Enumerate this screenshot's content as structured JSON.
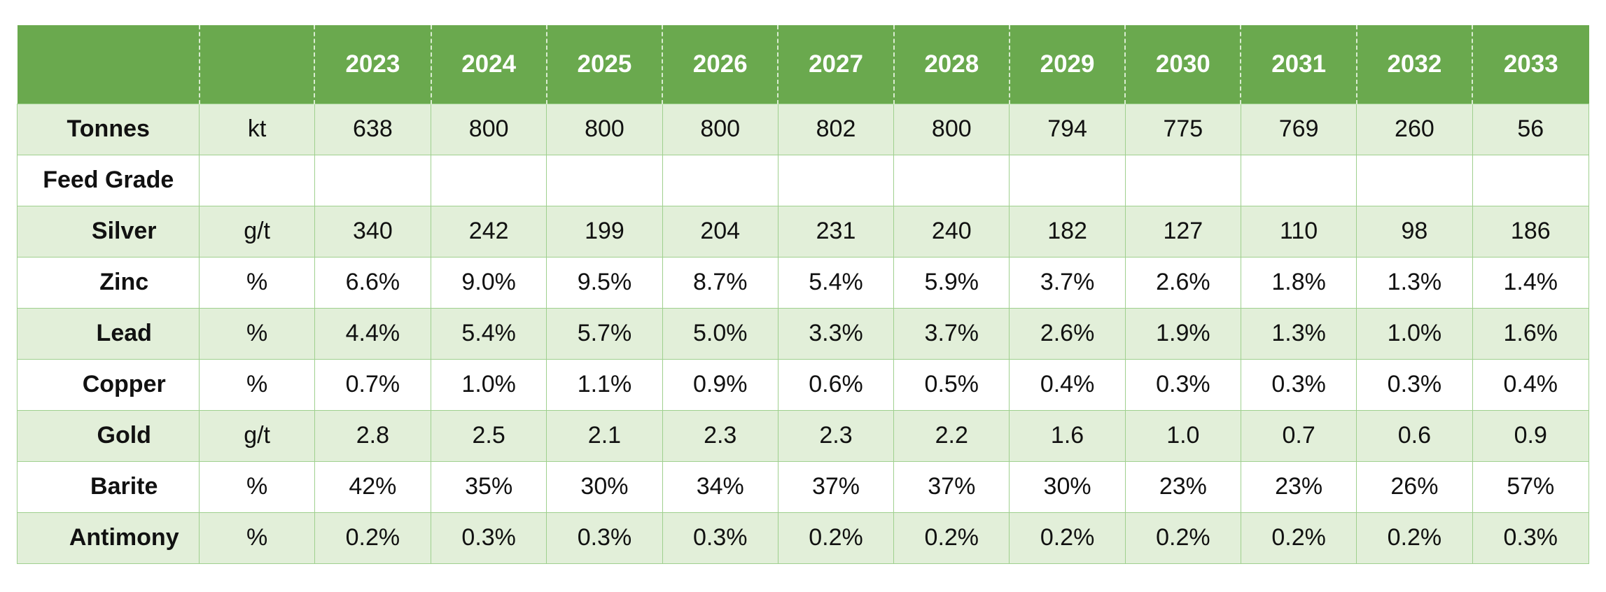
{
  "table": {
    "header": {
      "label_col": "",
      "unit_col": "",
      "years": [
        "2023",
        "2024",
        "2025",
        "2026",
        "2027",
        "2028",
        "2029",
        "2030",
        "2031",
        "2032",
        "2033"
      ]
    },
    "rows": [
      {
        "label": "Tonnes",
        "unit": "kt",
        "indent": false,
        "shaded": true,
        "values": [
          "638",
          "800",
          "800",
          "800",
          "802",
          "800",
          "794",
          "775",
          "769",
          "260",
          "56"
        ]
      },
      {
        "label": "Feed Grade",
        "unit": "",
        "indent": false,
        "shaded": false,
        "values": [
          "",
          "",
          "",
          "",
          "",
          "",
          "",
          "",
          "",
          "",
          ""
        ]
      },
      {
        "label": "Silver",
        "unit": "g/t",
        "indent": true,
        "shaded": true,
        "values": [
          "340",
          "242",
          "199",
          "204",
          "231",
          "240",
          "182",
          "127",
          "110",
          "98",
          "186"
        ]
      },
      {
        "label": "Zinc",
        "unit": "%",
        "indent": true,
        "shaded": false,
        "values": [
          "6.6%",
          "9.0%",
          "9.5%",
          "8.7%",
          "5.4%",
          "5.9%",
          "3.7%",
          "2.6%",
          "1.8%",
          "1.3%",
          "1.4%"
        ]
      },
      {
        "label": "Lead",
        "unit": "%",
        "indent": true,
        "shaded": true,
        "values": [
          "4.4%",
          "5.4%",
          "5.7%",
          "5.0%",
          "3.3%",
          "3.7%",
          "2.6%",
          "1.9%",
          "1.3%",
          "1.0%",
          "1.6%"
        ]
      },
      {
        "label": "Copper",
        "unit": "%",
        "indent": true,
        "shaded": false,
        "values": [
          "0.7%",
          "1.0%",
          "1.1%",
          "0.9%",
          "0.6%",
          "0.5%",
          "0.4%",
          "0.3%",
          "0.3%",
          "0.3%",
          "0.4%"
        ]
      },
      {
        "label": "Gold",
        "unit": "g/t",
        "indent": true,
        "shaded": true,
        "values": [
          "2.8",
          "2.5",
          "2.1",
          "2.3",
          "2.3",
          "2.2",
          "1.6",
          "1.0",
          "0.7",
          "0.6",
          "0.9"
        ]
      },
      {
        "label": "Barite",
        "unit": "%",
        "indent": true,
        "shaded": false,
        "values": [
          "42%",
          "35%",
          "30%",
          "34%",
          "37%",
          "37%",
          "30%",
          "23%",
          "23%",
          "26%",
          "57%"
        ]
      },
      {
        "label": "Antimony",
        "unit": "%",
        "indent": true,
        "shaded": true,
        "values": [
          "0.2%",
          "0.3%",
          "0.3%",
          "0.3%",
          "0.2%",
          "0.2%",
          "0.2%",
          "0.2%",
          "0.2%",
          "0.2%",
          "0.3%"
        ]
      }
    ]
  },
  "colors": {
    "header_bg": "#6aa94e",
    "header_text": "#ffffff",
    "row_shade": "#e2efd9",
    "row_plain": "#ffffff",
    "grid_line": "#9fd08e"
  }
}
